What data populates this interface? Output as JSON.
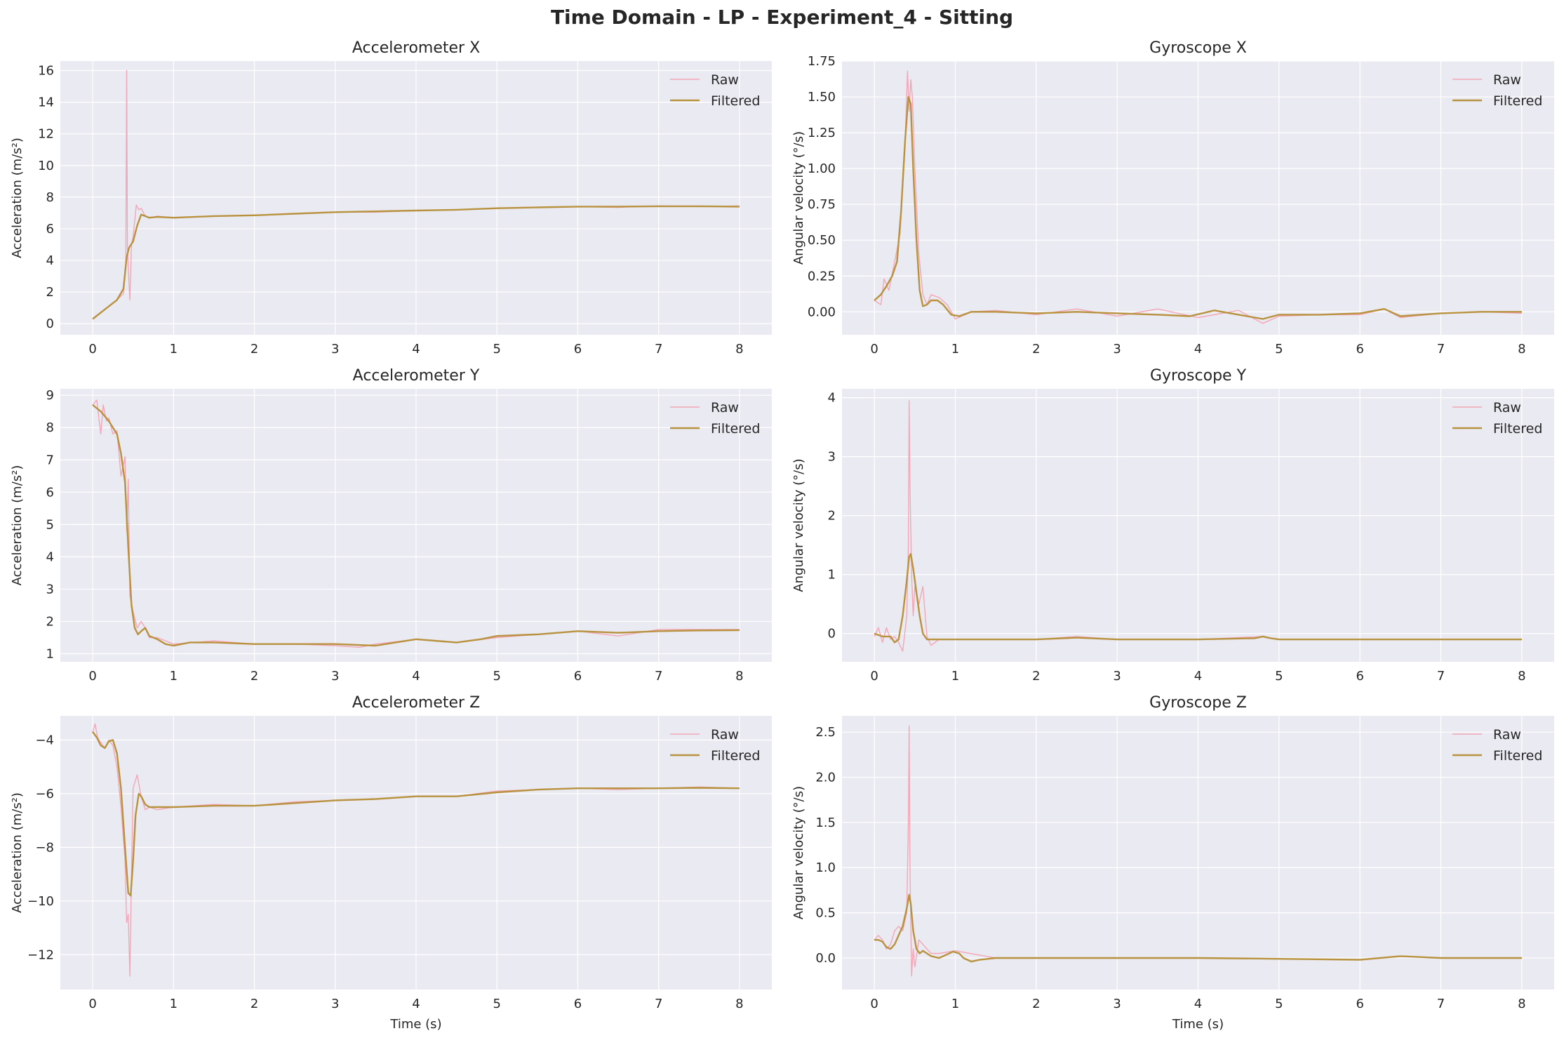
{
  "figure": {
    "title": "Time Domain - LP - Experiment_4 - Sitting"
  },
  "colors": {
    "raw": "#f4a6b6",
    "filtered": "#b8923e",
    "panel_bg": "#eaeaf2",
    "grid": "#ffffff"
  },
  "chart_data": [
    {
      "type": "line",
      "title": "Accelerometer X",
      "xlabel": "",
      "ylabel": "Acceleration (m/s²)",
      "xlim": [
        -0.4,
        8.4
      ],
      "ylim": [
        -0.7,
        16.6
      ],
      "xticks": [
        0,
        1,
        2,
        3,
        4,
        5,
        6,
        7,
        8
      ],
      "yticks": [
        0,
        2,
        4,
        6,
        8,
        10,
        12,
        14,
        16
      ],
      "legend": {
        "position": "top-right",
        "entries": [
          "Raw",
          "Filtered"
        ]
      },
      "series": [
        {
          "name": "Raw",
          "x": [
            0,
            0.1,
            0.2,
            0.3,
            0.38,
            0.41,
            0.42,
            0.43,
            0.44,
            0.46,
            0.48,
            0.5,
            0.54,
            0.57,
            0.6,
            0.65,
            0.7,
            0.8,
            1,
            1.5,
            2,
            2.5,
            3,
            3.5,
            4,
            4.5,
            5,
            5.5,
            6,
            6.5,
            7,
            7.5,
            8
          ],
          "y": [
            0.3,
            0.7,
            1.1,
            1.5,
            1.9,
            3.5,
            16.0,
            5.0,
            3.5,
            1.5,
            5.0,
            5.5,
            7.5,
            7.2,
            7.3,
            6.8,
            6.7,
            6.8,
            6.7,
            6.8,
            6.85,
            6.95,
            7.05,
            7.05,
            7.15,
            7.2,
            7.3,
            7.35,
            7.4,
            7.35,
            7.45,
            7.4,
            7.45
          ]
        },
        {
          "name": "Filtered",
          "x": [
            0,
            0.1,
            0.2,
            0.3,
            0.38,
            0.42,
            0.45,
            0.5,
            0.55,
            0.6,
            0.65,
            0.7,
            0.8,
            1,
            1.5,
            2,
            2.5,
            3,
            3.5,
            4,
            4.5,
            5,
            5.5,
            6,
            6.5,
            7,
            7.5,
            8
          ],
          "y": [
            0.3,
            0.7,
            1.1,
            1.5,
            2.2,
            4.2,
            4.8,
            5.2,
            6.2,
            6.9,
            6.8,
            6.7,
            6.75,
            6.7,
            6.8,
            6.85,
            6.95,
            7.05,
            7.1,
            7.15,
            7.2,
            7.3,
            7.35,
            7.4,
            7.4,
            7.42,
            7.42,
            7.4
          ]
        }
      ]
    },
    {
      "type": "line",
      "title": "Gyroscope X",
      "xlabel": "",
      "ylabel": "Angular velocity (°/s)",
      "xlim": [
        -0.4,
        8.4
      ],
      "ylim": [
        -0.16,
        1.75
      ],
      "xticks": [
        0,
        1,
        2,
        3,
        4,
        5,
        6,
        7,
        8
      ],
      "yticks": [
        0.0,
        0.25,
        0.5,
        0.75,
        1.0,
        1.25,
        1.5,
        1.75
      ],
      "yticklabels": [
        "0.00",
        "0.25",
        "0.50",
        "0.75",
        "1.00",
        "1.25",
        "1.50",
        "1.75"
      ],
      "legend": {
        "position": "top-right",
        "entries": [
          "Raw",
          "Filtered"
        ]
      },
      "series": [
        {
          "name": "Raw",
          "x": [
            0,
            0.08,
            0.12,
            0.18,
            0.25,
            0.32,
            0.38,
            0.41,
            0.43,
            0.45,
            0.47,
            0.5,
            0.55,
            0.6,
            0.65,
            0.7,
            0.8,
            0.9,
            1.0,
            1.2,
            1.5,
            2,
            2.5,
            3,
            3.5,
            4,
            4.5,
            4.8,
            5,
            5.5,
            6,
            6.3,
            6.5,
            7,
            7.5,
            8
          ],
          "y": [
            0.08,
            0.05,
            0.23,
            0.15,
            0.35,
            0.55,
            1.2,
            1.68,
            1.4,
            1.62,
            1.5,
            1.0,
            0.4,
            0.12,
            0.05,
            0.12,
            0.1,
            0.05,
            -0.05,
            0.0,
            0.01,
            -0.02,
            0.02,
            -0.03,
            0.02,
            -0.04,
            0.01,
            -0.08,
            -0.03,
            -0.02,
            -0.02,
            0.02,
            -0.04,
            -0.01,
            0.0,
            -0.01
          ]
        },
        {
          "name": "Filtered",
          "x": [
            0,
            0.08,
            0.15,
            0.22,
            0.28,
            0.33,
            0.38,
            0.42,
            0.45,
            0.48,
            0.52,
            0.56,
            0.6,
            0.65,
            0.7,
            0.78,
            0.85,
            0.95,
            1.05,
            1.2,
            1.5,
            2,
            2.5,
            3,
            3.5,
            3.9,
            4.2,
            4.5,
            4.8,
            5,
            5.5,
            6,
            6.3,
            6.5,
            7,
            7.5,
            8
          ],
          "y": [
            0.08,
            0.12,
            0.18,
            0.25,
            0.35,
            0.7,
            1.2,
            1.5,
            1.45,
            1.0,
            0.5,
            0.15,
            0.04,
            0.05,
            0.08,
            0.08,
            0.05,
            -0.02,
            -0.03,
            0.0,
            0.0,
            -0.01,
            0.0,
            -0.01,
            -0.02,
            -0.03,
            0.01,
            -0.02,
            -0.05,
            -0.02,
            -0.02,
            -0.01,
            0.02,
            -0.03,
            -0.01,
            0.0,
            0.0
          ]
        }
      ]
    },
    {
      "type": "line",
      "title": "Accelerometer Y",
      "xlabel": "",
      "ylabel": "Acceleration (m/s²)",
      "xlim": [
        -0.4,
        8.4
      ],
      "ylim": [
        0.75,
        9.2
      ],
      "xticks": [
        0,
        1,
        2,
        3,
        4,
        5,
        6,
        7,
        8
      ],
      "yticks": [
        1,
        2,
        3,
        4,
        5,
        6,
        7,
        8,
        9
      ],
      "legend": {
        "position": "top-right",
        "entries": [
          "Raw",
          "Filtered"
        ]
      },
      "series": [
        {
          "name": "Raw",
          "x": [
            0,
            0.05,
            0.1,
            0.13,
            0.17,
            0.2,
            0.25,
            0.3,
            0.35,
            0.4,
            0.42,
            0.44,
            0.46,
            0.5,
            0.55,
            0.6,
            0.65,
            0.7,
            0.8,
            1,
            1.5,
            2,
            2.5,
            3,
            3.3,
            3.5,
            4,
            4.5,
            5,
            5.5,
            6,
            6.5,
            7,
            7.5,
            8
          ],
          "y": [
            8.7,
            8.85,
            7.8,
            8.7,
            8.2,
            8.3,
            7.8,
            7.9,
            6.5,
            7.1,
            4.8,
            6.4,
            2.8,
            2.3,
            1.8,
            2.0,
            1.8,
            1.5,
            1.5,
            1.3,
            1.4,
            1.3,
            1.3,
            1.25,
            1.2,
            1.3,
            1.45,
            1.35,
            1.5,
            1.6,
            1.7,
            1.55,
            1.75,
            1.75,
            1.75
          ]
        },
        {
          "name": "Filtered",
          "x": [
            0,
            0.1,
            0.2,
            0.3,
            0.35,
            0.4,
            0.44,
            0.48,
            0.52,
            0.56,
            0.6,
            0.65,
            0.7,
            0.8,
            0.9,
            1.0,
            1.2,
            1.5,
            2,
            2.5,
            3,
            3.5,
            4,
            4.5,
            4.8,
            5,
            5.5,
            6,
            6.5,
            7,
            7.5,
            8
          ],
          "y": [
            8.7,
            8.5,
            8.2,
            7.8,
            7.2,
            6.3,
            4.3,
            2.5,
            1.8,
            1.6,
            1.7,
            1.8,
            1.55,
            1.45,
            1.3,
            1.25,
            1.35,
            1.35,
            1.3,
            1.3,
            1.3,
            1.25,
            1.45,
            1.35,
            1.45,
            1.55,
            1.6,
            1.7,
            1.65,
            1.7,
            1.72,
            1.73
          ]
        }
      ]
    },
    {
      "type": "line",
      "title": "Gyroscope Y",
      "xlabel": "",
      "ylabel": "Angular velocity (°/s)",
      "xlim": [
        -0.4,
        8.4
      ],
      "ylim": [
        -0.48,
        4.15
      ],
      "xticks": [
        0,
        1,
        2,
        3,
        4,
        5,
        6,
        7,
        8
      ],
      "yticks": [
        0,
        1,
        2,
        3,
        4
      ],
      "legend": {
        "position": "top-right",
        "entries": [
          "Raw",
          "Filtered"
        ]
      },
      "series": [
        {
          "name": "Raw",
          "x": [
            0,
            0.05,
            0.1,
            0.15,
            0.2,
            0.25,
            0.3,
            0.35,
            0.4,
            0.42,
            0.43,
            0.44,
            0.46,
            0.48,
            0.5,
            0.55,
            0.6,
            0.65,
            0.7,
            0.8,
            1,
            2,
            2.5,
            3,
            4,
            4.8,
            5,
            6,
            7,
            8
          ],
          "y": [
            -0.05,
            0.1,
            -0.15,
            0.1,
            -0.1,
            -0.05,
            -0.15,
            -0.3,
            0.3,
            1.5,
            3.95,
            2.5,
            1.0,
            0.3,
            0.8,
            0.5,
            0.8,
            -0.05,
            -0.2,
            -0.1,
            -0.1,
            -0.1,
            -0.05,
            -0.1,
            -0.1,
            -0.05,
            -0.1,
            -0.1,
            -0.1,
            -0.1
          ]
        },
        {
          "name": "Filtered",
          "x": [
            0,
            0.1,
            0.2,
            0.25,
            0.3,
            0.35,
            0.4,
            0.43,
            0.45,
            0.48,
            0.52,
            0.56,
            0.6,
            0.65,
            0.7,
            0.8,
            1,
            2,
            2.5,
            3,
            4,
            4.7,
            4.8,
            4.9,
            5,
            6,
            7,
            8
          ],
          "y": [
            0.0,
            -0.05,
            -0.05,
            -0.15,
            -0.1,
            0.3,
            0.9,
            1.3,
            1.35,
            1.1,
            0.7,
            0.3,
            0.0,
            -0.1,
            -0.1,
            -0.1,
            -0.1,
            -0.1,
            -0.07,
            -0.1,
            -0.1,
            -0.08,
            -0.05,
            -0.08,
            -0.1,
            -0.1,
            -0.1,
            -0.1
          ]
        }
      ]
    },
    {
      "type": "line",
      "title": "Accelerometer Z",
      "xlabel": "Time (s)",
      "ylabel": "Acceleration (m/s²)",
      "xlim": [
        -0.4,
        8.4
      ],
      "ylim": [
        -13.3,
        -3.1
      ],
      "xticks": [
        0,
        1,
        2,
        3,
        4,
        5,
        6,
        7,
        8
      ],
      "yticks": [
        -12,
        -10,
        -8,
        -6,
        -4
      ],
      "yticklabels": [
        "−12",
        "−10",
        "−8",
        "−6",
        "−4"
      ],
      "legend": {
        "position": "top-right",
        "entries": [
          "Raw",
          "Filtered"
        ]
      },
      "series": [
        {
          "name": "Raw",
          "x": [
            0,
            0.03,
            0.06,
            0.1,
            0.15,
            0.2,
            0.25,
            0.3,
            0.35,
            0.4,
            0.42,
            0.44,
            0.46,
            0.48,
            0.5,
            0.55,
            0.6,
            0.65,
            0.7,
            0.8,
            1,
            1.5,
            2,
            2.5,
            3,
            3.5,
            4,
            4.5,
            5,
            5.5,
            6,
            6.5,
            7,
            7.5,
            8
          ],
          "y": [
            -3.7,
            -3.4,
            -3.9,
            -4.1,
            -4.3,
            -4.0,
            -4.2,
            -5.0,
            -6.5,
            -8.5,
            -10.8,
            -10.5,
            -12.8,
            -9.0,
            -5.8,
            -5.3,
            -6.1,
            -6.6,
            -6.5,
            -6.6,
            -6.5,
            -6.4,
            -6.45,
            -6.3,
            -6.25,
            -6.2,
            -6.1,
            -6.1,
            -5.9,
            -5.85,
            -5.8,
            -5.85,
            -5.8,
            -5.75,
            -5.8
          ]
        },
        {
          "name": "Filtered",
          "x": [
            0,
            0.05,
            0.1,
            0.15,
            0.2,
            0.25,
            0.3,
            0.35,
            0.4,
            0.44,
            0.47,
            0.5,
            0.53,
            0.57,
            0.6,
            0.65,
            0.7,
            0.8,
            1,
            1.5,
            2,
            2.5,
            3,
            3.5,
            4,
            4.5,
            5,
            5.5,
            6,
            6.5,
            7,
            7.5,
            8
          ],
          "y": [
            -3.7,
            -3.9,
            -4.2,
            -4.3,
            -4.05,
            -4.0,
            -4.5,
            -5.8,
            -8.0,
            -9.7,
            -9.8,
            -8.5,
            -6.8,
            -6.0,
            -6.1,
            -6.4,
            -6.5,
            -6.5,
            -6.5,
            -6.45,
            -6.45,
            -6.35,
            -6.25,
            -6.2,
            -6.1,
            -6.1,
            -5.95,
            -5.85,
            -5.8,
            -5.8,
            -5.8,
            -5.78,
            -5.8
          ]
        }
      ]
    },
    {
      "type": "line",
      "title": "Gyroscope Z",
      "xlabel": "Time (s)",
      "ylabel": "Angular velocity (°/s)",
      "xlim": [
        -0.4,
        8.4
      ],
      "ylim": [
        -0.35,
        2.68
      ],
      "xticks": [
        0,
        1,
        2,
        3,
        4,
        5,
        6,
        7,
        8
      ],
      "yticks": [
        0.0,
        0.5,
        1.0,
        1.5,
        2.0,
        2.5
      ],
      "yticklabels": [
        "0.0",
        "0.5",
        "1.0",
        "1.5",
        "2.0",
        "2.5"
      ],
      "legend": {
        "position": "top-right",
        "entries": [
          "Raw",
          "Filtered"
        ]
      },
      "series": [
        {
          "name": "Raw",
          "x": [
            0,
            0.05,
            0.1,
            0.15,
            0.2,
            0.25,
            0.3,
            0.35,
            0.4,
            0.42,
            0.43,
            0.44,
            0.46,
            0.48,
            0.5,
            0.55,
            0.6,
            0.65,
            0.7,
            0.8,
            1,
            1.5,
            2,
            3,
            4,
            5,
            6,
            6.5,
            7,
            8
          ],
          "y": [
            0.2,
            0.25,
            0.2,
            0.1,
            0.15,
            0.3,
            0.35,
            0.3,
            0.5,
            1.5,
            2.57,
            1.0,
            -0.2,
            0.1,
            -0.1,
            0.2,
            0.15,
            0.1,
            0.05,
            0.05,
            0.08,
            0.0,
            0.0,
            0.0,
            0.0,
            -0.01,
            -0.02,
            0.02,
            0.0,
            0.0
          ]
        },
        {
          "name": "Filtered",
          "x": [
            0,
            0.05,
            0.1,
            0.15,
            0.2,
            0.25,
            0.3,
            0.35,
            0.4,
            0.43,
            0.45,
            0.48,
            0.52,
            0.56,
            0.6,
            0.65,
            0.7,
            0.8,
            0.9,
            0.97,
            1.05,
            1.1,
            1.2,
            1.3,
            1.5,
            2,
            3,
            4,
            5,
            6,
            6.5,
            7,
            8
          ],
          "y": [
            0.2,
            0.2,
            0.18,
            0.12,
            0.1,
            0.15,
            0.25,
            0.35,
            0.55,
            0.7,
            0.6,
            0.3,
            0.1,
            0.05,
            0.08,
            0.05,
            0.02,
            0.0,
            0.04,
            0.07,
            0.05,
            0.0,
            -0.04,
            -0.02,
            0.0,
            0.0,
            0.0,
            0.0,
            -0.01,
            -0.02,
            0.02,
            0.0,
            0.0
          ]
        }
      ]
    }
  ]
}
